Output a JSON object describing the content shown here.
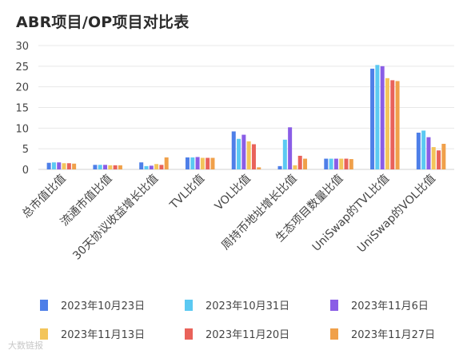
{
  "chart_data": {
    "type": "bar",
    "title": "ABR项目/OP项目对比表",
    "categories": [
      "总市值比值",
      "流通市值比值",
      "30天协议收益增长比值",
      "TVL比值",
      "VOL比值",
      "周持币地址增长比值",
      "生态项目数量比值",
      "UniSwap的TVL比值",
      "UniSwap的VOL比值"
    ],
    "ylim": [
      0,
      30
    ],
    "yticks": [
      0,
      5,
      10,
      15,
      20,
      25,
      30
    ],
    "grid": true,
    "legend_position": "bottom",
    "series": [
      {
        "name": "2023年10月23日",
        "color": "#4e7fe8",
        "values": [
          1.6,
          1.1,
          1.7,
          2.9,
          9.2,
          0.8,
          2.6,
          24.4,
          8.9
        ]
      },
      {
        "name": "2023年10月31日",
        "color": "#5bc9f2",
        "values": [
          1.7,
          1.1,
          0.8,
          2.9,
          7.4,
          7.2,
          2.6,
          25.3,
          9.4
        ]
      },
      {
        "name": "2023年11月6日",
        "color": "#8a5de6",
        "values": [
          1.7,
          1.1,
          0.9,
          3.0,
          8.4,
          10.2,
          2.6,
          25.0,
          7.8
        ]
      },
      {
        "name": "2023年11月13日",
        "color": "#f3c55b",
        "values": [
          1.5,
          1.0,
          1.3,
          2.8,
          6.8,
          1.0,
          2.6,
          22.1,
          5.4
        ]
      },
      {
        "name": "2023年11月20日",
        "color": "#e9625a",
        "values": [
          1.5,
          1.0,
          1.1,
          2.8,
          6.1,
          3.3,
          2.6,
          21.6,
          4.6
        ]
      },
      {
        "name": "2023年11月27日",
        "color": "#f0a04a",
        "values": [
          1.4,
          1.0,
          2.9,
          2.8,
          0.5,
          2.6,
          2.5,
          21.4,
          6.2
        ]
      }
    ]
  },
  "watermark": {
    "text": "大数链报"
  }
}
